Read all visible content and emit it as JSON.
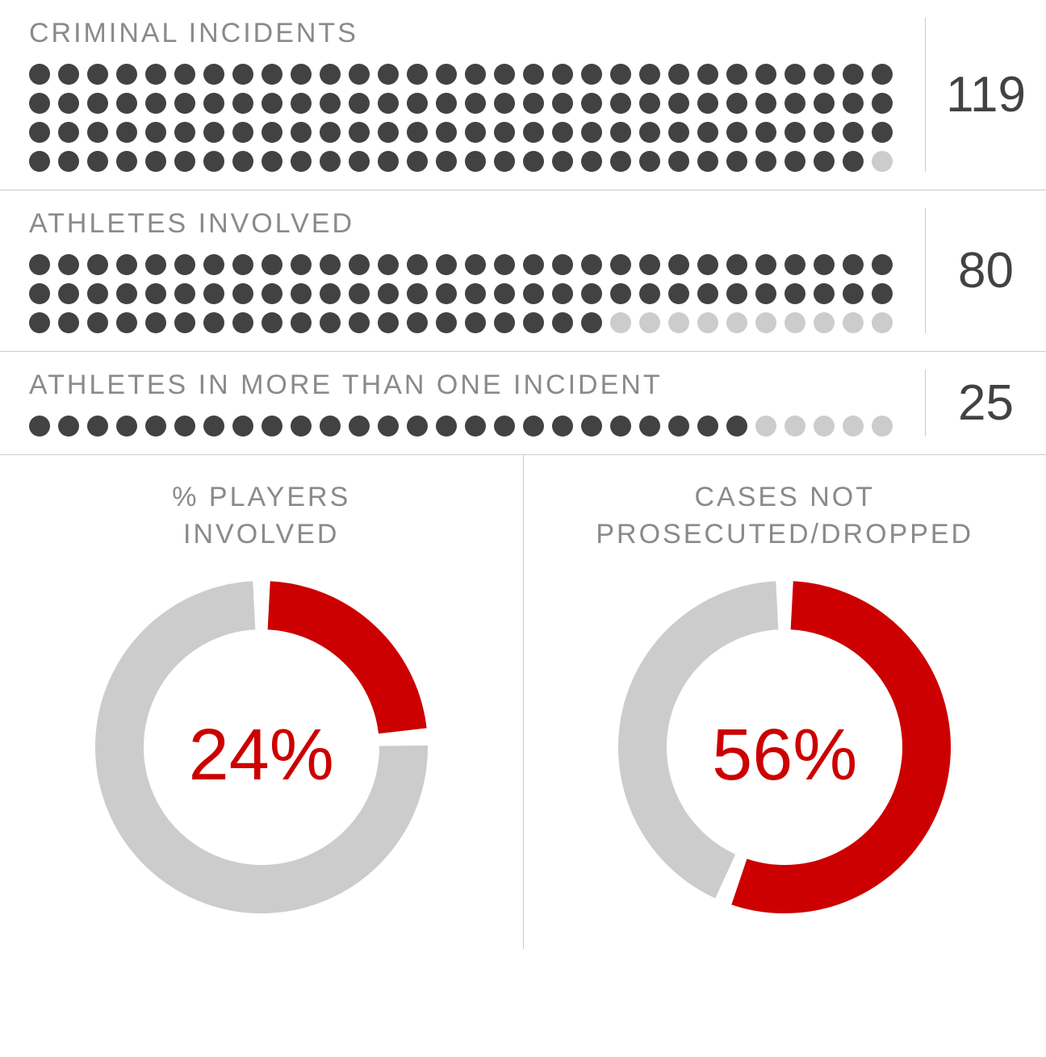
{
  "colors": {
    "dot_filled": "#424242",
    "dot_empty": "#cccccc",
    "divider": "#cccccc",
    "label_text": "#8a8a8a",
    "number_text": "#424242",
    "donut_track": "#cccccc",
    "donut_fill": "#cc0000",
    "donut_pct_text": "#cc0000",
    "background": "#ffffff"
  },
  "typography": {
    "label_fontsize": 34,
    "number_fontsize": 62,
    "donut_title_fontsize": 34,
    "donut_pct_fontsize": 90
  },
  "dot_style": {
    "diameter": 26,
    "gap": 10,
    "dots_per_row": 30
  },
  "donut_style": {
    "size": 420,
    "stroke_width": 60,
    "gap_deg": 6,
    "start_angle_deg": 0
  },
  "dot_sections": [
    {
      "label": "CRIMINAL INCIDENTS",
      "value": 119,
      "total_dots": 120
    },
    {
      "label": "ATHLETES INVOLVED",
      "value": 80,
      "total_dots": 90
    },
    {
      "label": "ATHLETES IN MORE THAN ONE INCIDENT",
      "value": 25,
      "total_dots": 30
    }
  ],
  "donuts": [
    {
      "title": "% PLAYERS\nINVOLVED",
      "percent": 24,
      "display": "24%"
    },
    {
      "title": "CASES NOT\nPROSECUTED/DROPPED",
      "percent": 56,
      "display": "56%"
    }
  ]
}
